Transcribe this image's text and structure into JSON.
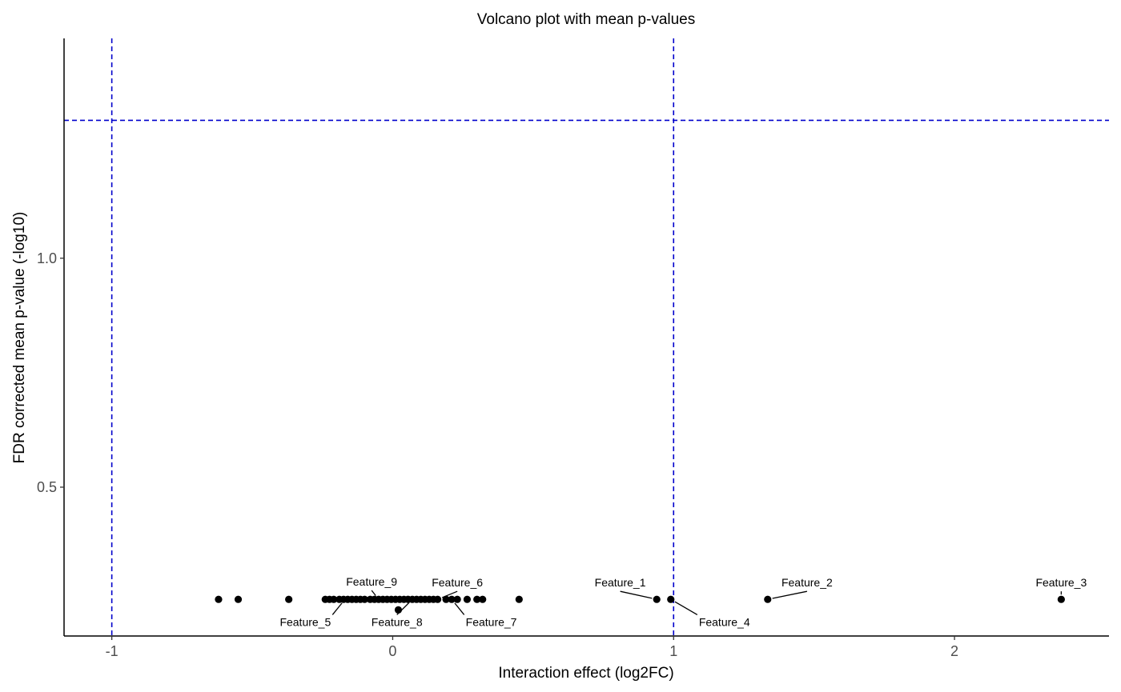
{
  "chart_data": {
    "type": "scatter",
    "title": "Volcano plot with mean p-values",
    "xlabel": "Interaction effect (log2FC)",
    "ylabel": "FDR corrected mean p-value (-log10)",
    "xlim": [
      -1.17,
      2.55
    ],
    "ylim": [
      0.175,
      1.48
    ],
    "x_ticks": [
      -1,
      0,
      1,
      2
    ],
    "x_tick_labels": [
      "-1",
      "0",
      "1",
      "2"
    ],
    "y_ticks": [
      0.5,
      1.0
    ],
    "y_tick_labels": [
      "0.5",
      "1.0"
    ],
    "grid": false,
    "legend": "none",
    "reference_lines": {
      "vertical": [
        -1,
        1
      ],
      "horizontal": [
        1.301
      ],
      "color": "#0000cc",
      "style": "dashed"
    },
    "point_color": "#000000",
    "points": [
      {
        "x": -0.62,
        "y": 0.255
      },
      {
        "x": -0.55,
        "y": 0.255
      },
      {
        "x": -0.37,
        "y": 0.255
      },
      {
        "x": -0.24,
        "y": 0.255
      },
      {
        "x": -0.225,
        "y": 0.255
      },
      {
        "x": -0.21,
        "y": 0.255
      },
      {
        "x": -0.19,
        "y": 0.255
      },
      {
        "x": -0.175,
        "y": 0.255
      },
      {
        "x": -0.16,
        "y": 0.255
      },
      {
        "x": -0.145,
        "y": 0.255
      },
      {
        "x": -0.13,
        "y": 0.255
      },
      {
        "x": -0.115,
        "y": 0.255
      },
      {
        "x": -0.1,
        "y": 0.255
      },
      {
        "x": -0.08,
        "y": 0.255
      },
      {
        "x": -0.065,
        "y": 0.255
      },
      {
        "x": -0.05,
        "y": 0.255
      },
      {
        "x": -0.035,
        "y": 0.255
      },
      {
        "x": -0.02,
        "y": 0.255
      },
      {
        "x": -0.005,
        "y": 0.255
      },
      {
        "x": 0.01,
        "y": 0.255
      },
      {
        "x": 0.025,
        "y": 0.255
      },
      {
        "x": 0.04,
        "y": 0.255
      },
      {
        "x": 0.055,
        "y": 0.255
      },
      {
        "x": 0.07,
        "y": 0.255
      },
      {
        "x": 0.085,
        "y": 0.255
      },
      {
        "x": 0.1,
        "y": 0.255
      },
      {
        "x": 0.115,
        "y": 0.255
      },
      {
        "x": 0.13,
        "y": 0.255
      },
      {
        "x": 0.145,
        "y": 0.255
      },
      {
        "x": 0.16,
        "y": 0.255
      },
      {
        "x": 0.19,
        "y": 0.255
      },
      {
        "x": 0.21,
        "y": 0.255
      },
      {
        "x": 0.23,
        "y": 0.255
      },
      {
        "x": 0.265,
        "y": 0.255
      },
      {
        "x": 0.3,
        "y": 0.255
      },
      {
        "x": 0.32,
        "y": 0.255
      },
      {
        "x": 0.45,
        "y": 0.255
      },
      {
        "x": 0.02,
        "y": 0.232
      },
      {
        "x": 0.94,
        "y": 0.255
      },
      {
        "x": 0.99,
        "y": 0.255
      },
      {
        "x": 1.335,
        "y": 0.255
      },
      {
        "x": 2.38,
        "y": 0.255
      }
    ],
    "labels": [
      {
        "text": "Feature_1",
        "x": 0.94,
        "y": 0.255,
        "lx": 0.81,
        "ly": 0.283,
        "anchor": "middle"
      },
      {
        "text": "Feature_2",
        "x": 1.335,
        "y": 0.255,
        "lx": 1.475,
        "ly": 0.283,
        "anchor": "middle"
      },
      {
        "text": "Feature_3",
        "x": 2.38,
        "y": 0.255,
        "lx": 2.38,
        "ly": 0.283,
        "anchor": "middle"
      },
      {
        "text": "Feature_4",
        "x": 0.99,
        "y": 0.255,
        "lx": 1.09,
        "ly": 0.197,
        "anchor": "start"
      },
      {
        "text": "Feature_5",
        "x": -0.17,
        "y": 0.255,
        "lx": -0.22,
        "ly": 0.197,
        "anchor": "end"
      },
      {
        "text": "Feature_6",
        "x": 0.16,
        "y": 0.255,
        "lx": 0.23,
        "ly": 0.283,
        "anchor": "middle"
      },
      {
        "text": "Feature_7",
        "x": 0.21,
        "y": 0.255,
        "lx": 0.26,
        "ly": 0.197,
        "anchor": "start"
      },
      {
        "text": "Feature_8",
        "x": 0.07,
        "y": 0.255,
        "lx": 0.015,
        "ly": 0.197,
        "anchor": "middle"
      },
      {
        "text": "Feature_9",
        "x": -0.05,
        "y": 0.255,
        "lx": -0.075,
        "ly": 0.285,
        "anchor": "middle"
      }
    ]
  }
}
